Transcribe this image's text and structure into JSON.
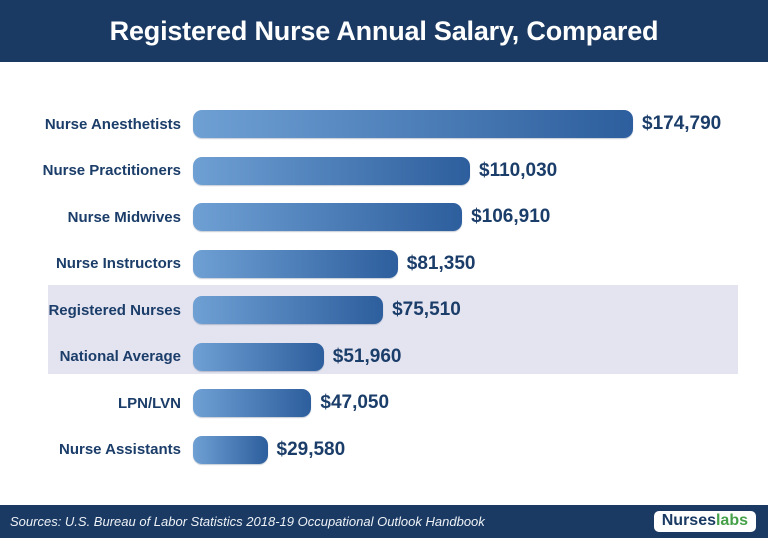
{
  "header": {
    "title": "Registered Nurse Annual Salary, Compared"
  },
  "chart_data": {
    "type": "bar",
    "orientation": "horizontal",
    "title": "Registered Nurse Annual Salary, Compared",
    "categories": [
      "Nurse Anesthetists",
      "Nurse Practitioners",
      "Nurse Midwives",
      "Nurse Instructors",
      "Registered Nurses",
      "National Average",
      "LPN/LVN",
      "Nurse Assistants"
    ],
    "values": [
      174790,
      110030,
      106910,
      81350,
      75510,
      51960,
      47050,
      29580
    ],
    "value_labels": [
      "$174,790",
      "$110,030",
      "$106,910",
      "$81,350",
      "$75,510",
      "$51,960",
      "$47,050",
      "$29,580"
    ],
    "highlighted_categories": [
      "Registered Nurses",
      "National Average"
    ],
    "xlim": [
      0,
      174790
    ],
    "grid": false,
    "legend": false
  },
  "rows": [
    {
      "label": "Nurse Anesthetists",
      "value": 174790,
      "value_label": "$174,790",
      "highlighted": false
    },
    {
      "label": "Nurse Practitioners",
      "value": 110030,
      "value_label": "$110,030",
      "highlighted": false
    },
    {
      "label": "Nurse Midwives",
      "value": 106910,
      "value_label": "$106,910",
      "highlighted": false
    },
    {
      "label": "Nurse Instructors",
      "value": 81350,
      "value_label": "$81,350",
      "highlighted": false
    },
    {
      "label": "Registered Nurses",
      "value": 75510,
      "value_label": "$75,510",
      "highlighted": true
    },
    {
      "label": "National Average",
      "value": 51960,
      "value_label": "$51,960",
      "highlighted": true
    },
    {
      "label": "LPN/LVN",
      "value": 47050,
      "value_label": "$47,050",
      "highlighted": false
    },
    {
      "label": "Nurse Assistants",
      "value": 29580,
      "value_label": "$29,580",
      "highlighted": false
    }
  ],
  "footer": {
    "source": "Sources: U.S. Bureau of Labor Statistics 2018-19 Occupational Outlook Handbook",
    "logo_part1": "Nurses",
    "logo_part2": "labs"
  },
  "colors": {
    "header_bg": "#1a3a63",
    "footer_bg": "#1a3a63",
    "text_navy": "#1b3d69",
    "bar_gradient_start": "#6fa0d4",
    "bar_gradient_end": "#2d5e9d",
    "highlight_band": "#e4e4f1",
    "logo_green": "#45a049"
  }
}
